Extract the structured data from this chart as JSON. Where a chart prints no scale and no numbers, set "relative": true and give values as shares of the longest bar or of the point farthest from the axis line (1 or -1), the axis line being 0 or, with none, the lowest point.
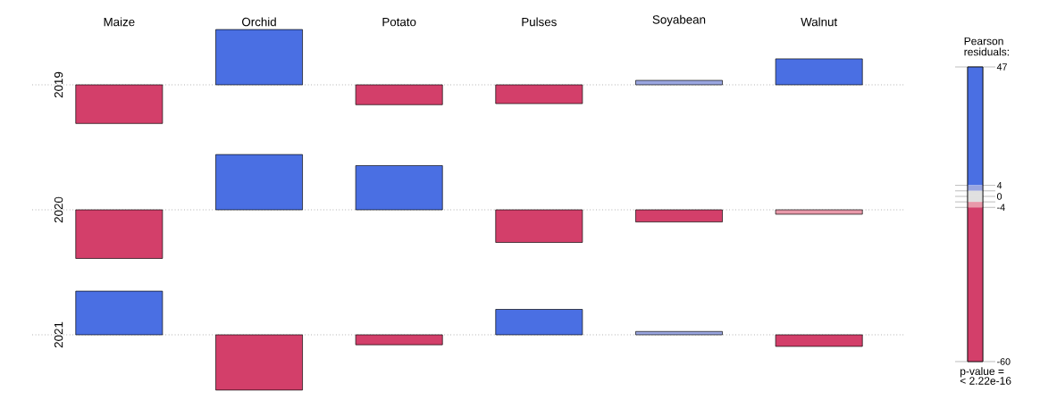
{
  "chart_data": [
    {
      "type": "bar",
      "relative": true,
      "ylabel": "2019",
      "categories": [
        "Maize",
        "Orchid",
        "Potato",
        "Pulses",
        "Soyabean",
        "Walnut"
      ],
      "values": [
        -0.7,
        1,
        -0.36,
        -0.34,
        0.08,
        0.47
      ],
      "colors": [
        "#d33f6a",
        "#4a6fe3",
        "#d33f6a",
        "#d33f6a",
        "#9aa6e0",
        "#4a6fe3"
      ],
      "tick_labels": "x",
      "ref_lines": [
        {
          "axis": "y",
          "value": 0,
          "line_style": "dotted",
          "color": "#888888"
        }
      ],
      "clabel": "Pearson residuals:",
      "clim": [
        -60,
        47
      ],
      "cticks": [
        47,
        {
          "value": 4,
          "label": "4"
        },
        {
          "value": 2,
          "label": null
        },
        0,
        {
          "value": -2,
          "label": null
        },
        -4,
        -60
      ],
      "annotations": [
        "p-value =",
        "< 2.22e-16"
      ]
    },
    {
      "type": "bar",
      "relative": true,
      "ylabel": "2020",
      "categories": [
        null,
        null,
        null,
        null,
        null,
        null
      ],
      "values": [
        -0.88,
        1,
        0.8,
        -0.59,
        -0.22,
        -0.08
      ],
      "colors": [
        "#d33f6a",
        "#4a6fe3",
        "#4a6fe3",
        "#d33f6a",
        "#d33f6a",
        "#e899aa"
      ],
      "tick_labels": false,
      "ref_lines": [
        {
          "axis": "y",
          "value": 0,
          "line_style": "dotted",
          "color": "#888888"
        }
      ]
    },
    {
      "type": "bar",
      "relative": true,
      "ylabel": "2021",
      "categories": [
        null,
        null,
        null,
        null,
        null,
        null
      ],
      "values": [
        0.79,
        -1,
        -0.18,
        0.46,
        0.06,
        -0.21
      ],
      "colors": [
        "#4a6fe3",
        "#d33f6a",
        "#d33f6a",
        "#4a6fe3",
        "#9aa6e0",
        "#d33f6a"
      ],
      "tick_labels": false,
      "ref_lines": [
        {
          "axis": "y",
          "value": 0,
          "line_style": "dotted",
          "color": "#888888"
        }
      ]
    }
  ]
}
